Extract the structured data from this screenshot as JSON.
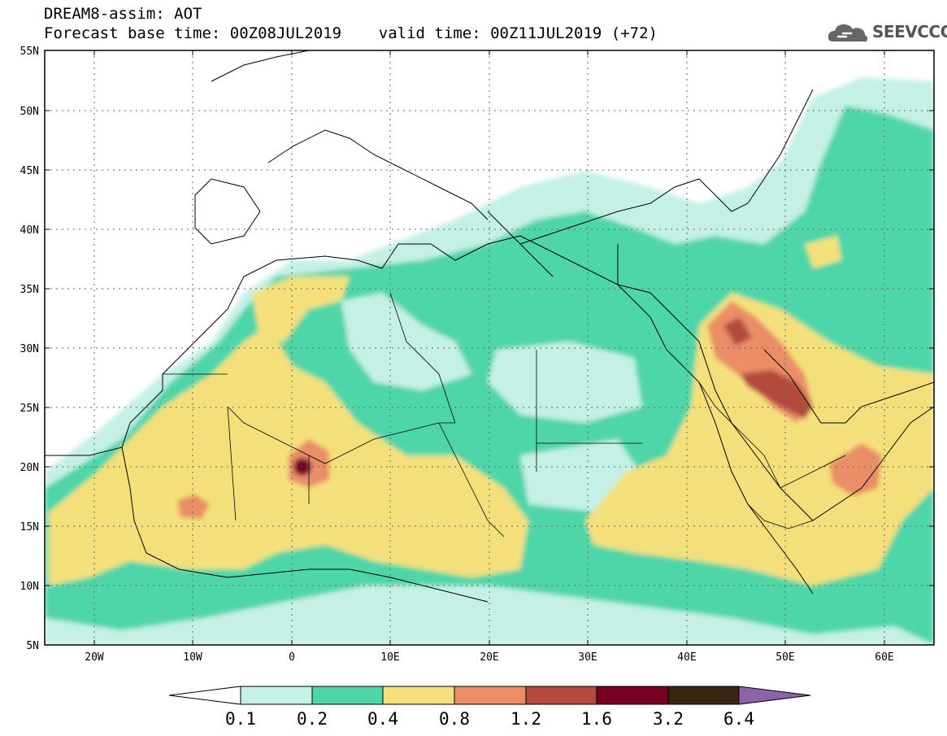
{
  "header": {
    "title": "DREAM8-assim: AOT",
    "subtitle": "Forecast base time: 00Z08JUL2019    valid time: 00Z11JUL2019 (+72)",
    "logo_text": "SEEVCCC",
    "logo_icon": "cloud-logo-icon"
  },
  "axes": {
    "lat_labels": [
      "55N",
      "50N",
      "45N",
      "40N",
      "35N",
      "30N",
      "25N",
      "20N",
      "15N",
      "10N",
      "5N"
    ],
    "lon_labels": [
      "20W",
      "10W",
      "0",
      "10E",
      "20E",
      "30E",
      "40E",
      "50E",
      "60E"
    ],
    "lat_values": [
      55,
      50,
      45,
      40,
      35,
      30,
      25,
      20,
      15,
      10,
      5
    ],
    "lon_values": [
      -20,
      -10,
      0,
      10,
      20,
      30,
      40,
      50,
      60
    ],
    "lon_range": [
      -25,
      65
    ],
    "lat_range": [
      5,
      55
    ],
    "grid": "dotted"
  },
  "colorbar": {
    "labels": [
      "0.1",
      "0.2",
      "0.4",
      "0.8",
      "1.2",
      "1.6",
      "3.2",
      "6.4"
    ],
    "colors": [
      "#ffffff",
      "#c5f0e6",
      "#4fd6a8",
      "#f4e07a",
      "#e98e66",
      "#b24b3e",
      "#780025",
      "#3a2412",
      "#8d63a8"
    ]
  }
}
